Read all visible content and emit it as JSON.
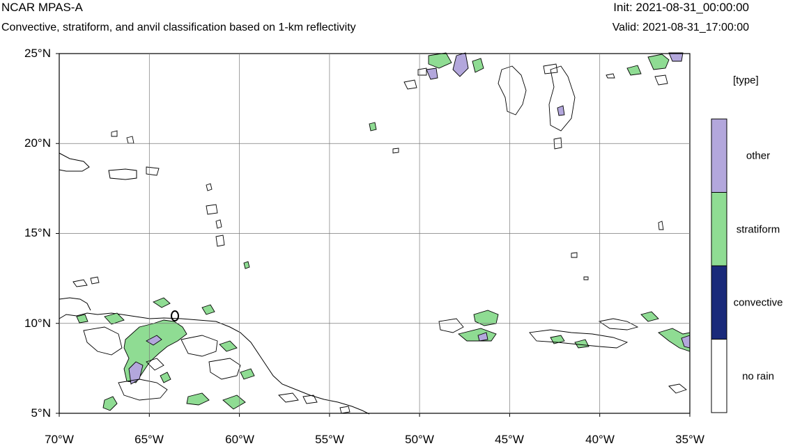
{
  "header": {
    "title": "NCAR MPAS-A",
    "subtitle": "Convective, stratiform, and anvil classification based on 1-km reflectivity",
    "init": "Init: 2021-08-31_00:00:00",
    "valid": "Valid: 2021-08-31_17:00:00"
  },
  "map": {
    "lat_labels": [
      "25°N",
      "20°N",
      "15°N",
      "10°N",
      "5°N"
    ],
    "lon_labels": [
      "70°W",
      "65°W",
      "60°W",
      "55°W",
      "50°W",
      "45°W",
      "40°W",
      "35°W"
    ],
    "lat_range": [
      5,
      25
    ],
    "lon_range": [
      -70,
      -35
    ]
  },
  "legend": {
    "title": "[type]",
    "categories": [
      {
        "label": "other",
        "color": "#b3a7dc"
      },
      {
        "label": "stratiform",
        "color": "#8fdc93"
      },
      {
        "label": "convective",
        "color": "#1a2a7a"
      },
      {
        "label": "no rain",
        "color": "#ffffff"
      }
    ]
  }
}
